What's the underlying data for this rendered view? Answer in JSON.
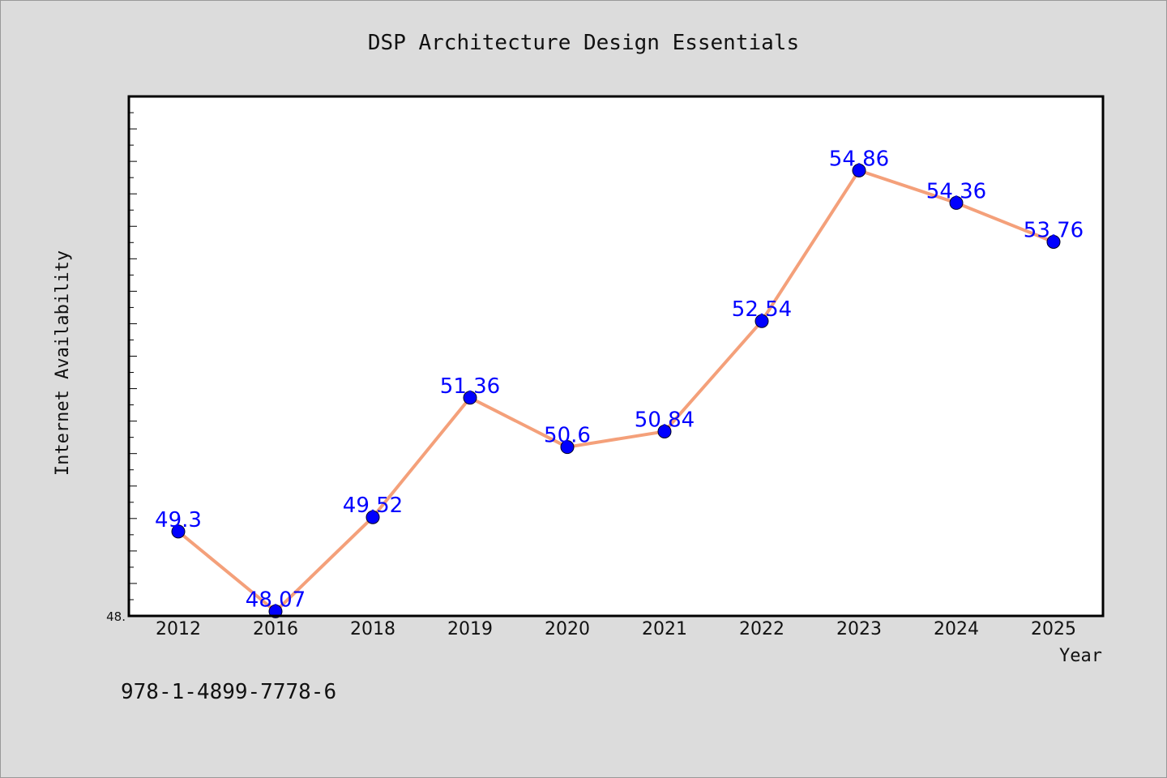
{
  "chart_data": {
    "type": "line",
    "title": "DSP Architecture Design Essentials",
    "xlabel": "Year",
    "ylabel": "Internet Availability",
    "categories": [
      "2012",
      "2016",
      "2018",
      "2019",
      "2020",
      "2021",
      "2022",
      "2023",
      "2024",
      "2025"
    ],
    "series": [
      {
        "values": [
          49.3,
          48.07,
          49.52,
          51.36,
          50.6,
          50.84,
          52.54,
          54.86,
          54.36,
          53.76
        ]
      }
    ],
    "data_labels": [
      "49.3",
      "48.07",
      "49.52",
      "51.36",
      "50.6",
      "50.84",
      "52.54",
      "54.86",
      "54.36",
      "53.76"
    ],
    "ylim": [
      48.0,
      56.0
    ],
    "ytick_labels": [
      "48."
    ],
    "grid": false,
    "line_color": "#f4a07a",
    "marker_color": "#0000ff",
    "label_color": "#0000ff",
    "plot_background": "#ffffff",
    "figure_background": "#dcdcdc"
  },
  "footer": {
    "isbn": "978-1-4899-7778-6"
  }
}
